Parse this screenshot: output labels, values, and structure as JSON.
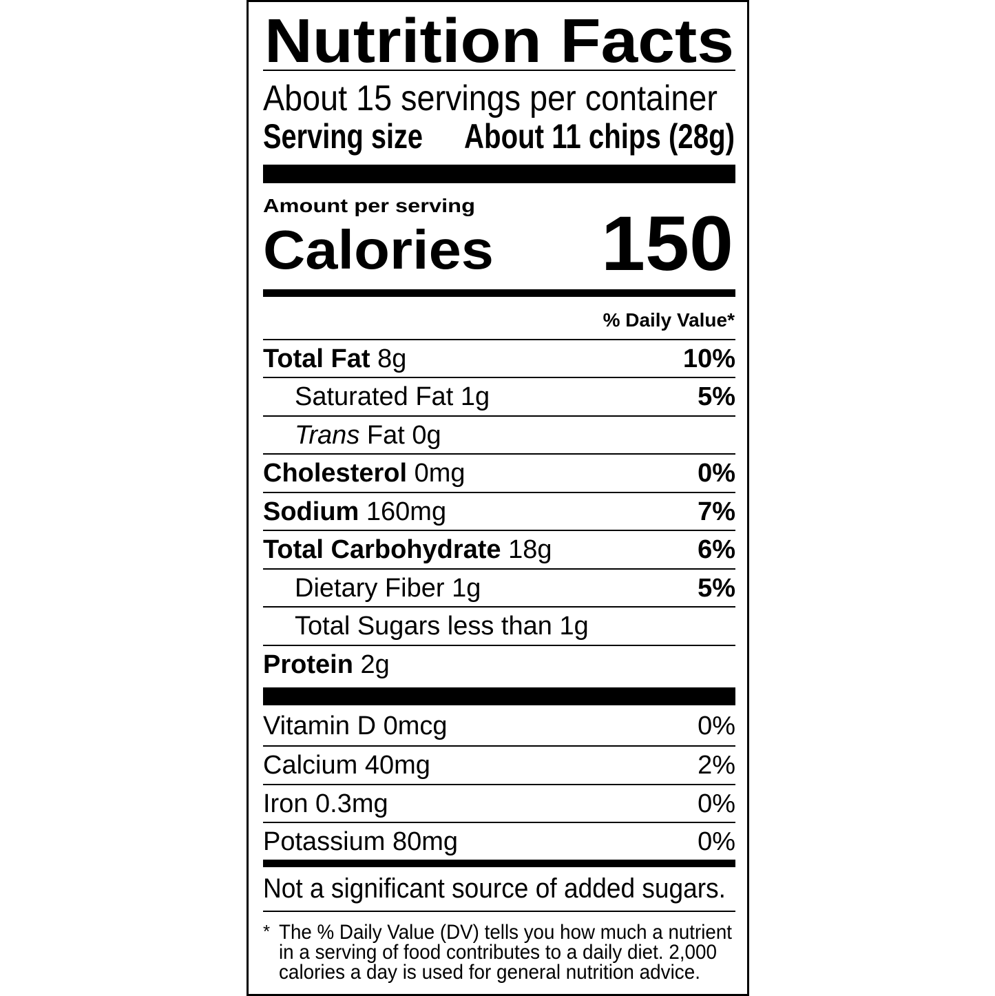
{
  "title": "Nutrition Facts",
  "servings_per_container": "About 15 servings per container",
  "serving_size": {
    "label": "Serving size",
    "value": "About 11 chips (28g)"
  },
  "amount_per_serving": "Amount per serving",
  "calories": {
    "label": "Calories",
    "value": "150"
  },
  "daily_value_header": "% Daily Value*",
  "nutrients": [
    {
      "name": "Total Fat",
      "amount": "8g",
      "dv": "10%"
    },
    {
      "name": "Saturated Fat",
      "amount": "1g",
      "dv": "5%"
    },
    {
      "name_italic": "Trans",
      "name": "Fat",
      "amount": "0g",
      "dv": ""
    },
    {
      "name": "Cholesterol",
      "amount": "0mg",
      "dv": "0%"
    },
    {
      "name": "Sodium",
      "amount": "160mg",
      "dv": "7%"
    },
    {
      "name": "Total Carbohydrate",
      "amount": "18g",
      "dv": "6%"
    },
    {
      "name": "Dietary Fiber",
      "amount": "1g",
      "dv": "5%"
    },
    {
      "name": "Total Sugars",
      "amount": "less than 1g",
      "dv": ""
    },
    {
      "name": "Protein",
      "amount": "2g",
      "dv": ""
    }
  ],
  "vitamins": [
    {
      "name": "Vitamin D",
      "amount": "0mcg",
      "dv": "0%"
    },
    {
      "name": "Calcium",
      "amount": "40mg",
      "dv": "2%"
    },
    {
      "name": "Iron",
      "amount": "0.3mg",
      "dv": "0%"
    },
    {
      "name": "Potassium",
      "amount": "80mg",
      "dv": "0%"
    }
  ],
  "added_sugars_note": "Not a significant source of added sugars.",
  "footnote": {
    "asterisk": "*",
    "lines": [
      "The % Daily Value (DV) tells you how much a nutrient",
      "in a serving of food contributes to a daily diet. 2,000",
      "calories a day is used for general nutrition advice."
    ]
  }
}
